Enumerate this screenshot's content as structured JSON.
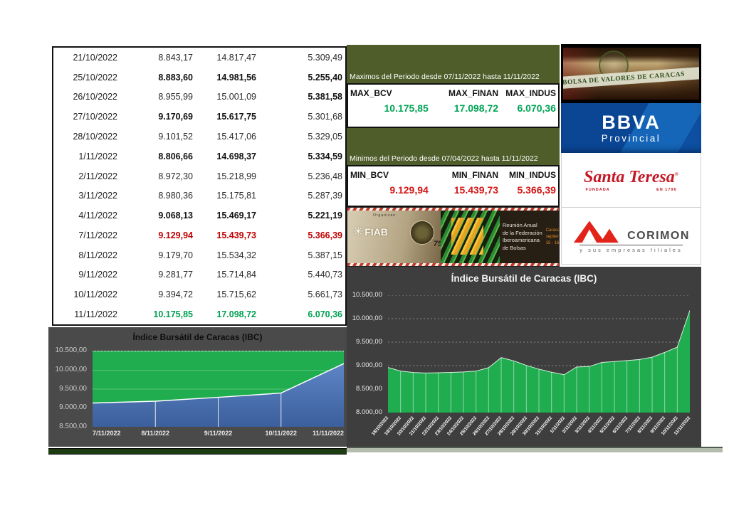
{
  "table": {
    "rows": [
      {
        "date": "21/10/2022",
        "values": [
          "8.843,17",
          "14.817,47",
          "5.309,49"
        ],
        "styles": [
          "n",
          "n",
          "n"
        ]
      },
      {
        "date": "25/10/2022",
        "values": [
          "8.883,60",
          "14.981,56",
          "5.255,40"
        ],
        "styles": [
          "b",
          "b",
          "b"
        ]
      },
      {
        "date": "26/10/2022",
        "values": [
          "8.955,99",
          "15.001,09",
          "5.381,58"
        ],
        "styles": [
          "n",
          "n",
          "b"
        ]
      },
      {
        "date": "27/10/2022",
        "values": [
          "9.170,69",
          "15.617,75",
          "5.301,68"
        ],
        "styles": [
          "b",
          "b",
          "n"
        ]
      },
      {
        "date": "28/10/2022",
        "values": [
          "9.101,52",
          "15.417,06",
          "5.329,05"
        ],
        "styles": [
          "n",
          "n",
          "n"
        ]
      },
      {
        "date": "1/11/2022",
        "values": [
          "8.806,66",
          "14.698,37",
          "5.334,59"
        ],
        "styles": [
          "b",
          "b",
          "b"
        ]
      },
      {
        "date": "2/11/2022",
        "values": [
          "8.972,30",
          "15.218,99",
          "5.236,48"
        ],
        "styles": [
          "n",
          "n",
          "n"
        ]
      },
      {
        "date": "3/11/2022",
        "values": [
          "8.980,36",
          "15.175,81",
          "5.287,39"
        ],
        "styles": [
          "n",
          "n",
          "n"
        ]
      },
      {
        "date": "4/11/2022",
        "values": [
          "9.068,13",
          "15.469,17",
          "5.221,19"
        ],
        "styles": [
          "b",
          "b",
          "b"
        ]
      },
      {
        "date": "7/11/2022",
        "values": [
          "9.129,94",
          "15.439,73",
          "5.366,39"
        ],
        "styles": [
          "r",
          "r",
          "r"
        ]
      },
      {
        "date": "8/11/2022",
        "values": [
          "9.179,70",
          "15.534,32",
          "5.387,15"
        ],
        "styles": [
          "n",
          "n",
          "n"
        ]
      },
      {
        "date": "9/11/2022",
        "values": [
          "9.281,77",
          "15.714,84",
          "5.440,73"
        ],
        "styles": [
          "n",
          "n",
          "n"
        ]
      },
      {
        "date": "10/11/2022",
        "values": [
          "9.394,72",
          "15.715,62",
          "5.661,73"
        ],
        "styles": [
          "n",
          "n",
          "n"
        ]
      },
      {
        "date": "11/11/2022",
        "values": [
          "10.175,85",
          "17.098,72",
          "6.070,36"
        ],
        "styles": [
          "g",
          "g",
          "g"
        ]
      }
    ]
  },
  "stats": {
    "band_color": "#4f5d2b",
    "maximos": {
      "header": "Maximos del Periodo desde 07/11/2022 hasta 11/11/2022",
      "columns": [
        "MAX_BCV",
        "MAX_FINAN",
        "MAX_INDUS"
      ],
      "values": [
        "10.175,85",
        "17.098,72",
        "6.070,36"
      ],
      "value_color": "#00a455"
    },
    "minimos": {
      "header": "Minimos del Periodo desde 07/04/2022 hasta 11/11/2022",
      "columns": [
        "MIN_BCV",
        "MIN_FINAN",
        "MIN_INDUS"
      ],
      "values": [
        "9.129,94",
        "15.439,73",
        "5.366,39"
      ],
      "value_color": "#d41616"
    }
  },
  "banner": {
    "organizer_label": "Organizan",
    "fiab_label": "FIAB",
    "anniversary": "75",
    "title_lines": [
      "Reunión Anual",
      "de la Federación",
      "Iberoamericana",
      "de Bolsas"
    ],
    "event_lines": [
      "Caracas",
      "septiembre",
      "15 - 16 2022"
    ]
  },
  "logos": {
    "bvc": {
      "name": "BOLSA DE VALORES DE CARACAS"
    },
    "bbva": {
      "line1": "BBVA",
      "line2": "Provincial",
      "bg": "#0b509f"
    },
    "santa_teresa": {
      "name": "Santa Teresa",
      "reg": "®",
      "sub_left": "FUNDADA",
      "sub_right": "EN 1796",
      "color": "#c41724"
    },
    "corimon": {
      "name": "CORIMON",
      "subtitle": "y sus empresas filiales",
      "accent": "#e2231a"
    }
  },
  "colors": {
    "table_red": "#c00000",
    "table_green": "#00a052",
    "chart_bg_left": "#4a4a4a",
    "chart_bg_right": "#3e3e3e",
    "area_green": "#1fad4f",
    "area_blue_top": "#5d85c6",
    "area_blue_bottom": "#3c5f9c"
  },
  "chart_data": [
    {
      "type": "area",
      "title": "Índice Bursátil de Caracas (IBC)",
      "x": [
        "7/11/2022",
        "8/11/2022",
        "9/11/2022",
        "10/11/2022",
        "11/11/2022"
      ],
      "series": [
        {
          "name": "IBC",
          "values": [
            9129.94,
            9179.7,
            9281.77,
            9394.72,
            10175.85
          ]
        }
      ],
      "ylim": [
        8500,
        10500
      ],
      "ytick_step": 500,
      "ytick_labels": [
        "10.500,00",
        "10.000,00",
        "9.500,00",
        "9.000,00",
        "8.500,00"
      ],
      "grid": true,
      "legend": false
    },
    {
      "type": "area",
      "title": "Índice Bursátil de Caracas (IBC)",
      "x": [
        "18/10/2022",
        "19/10/2022",
        "20/10/2022",
        "21/10/2022",
        "22/10/2022",
        "23/10/2022",
        "24/10/2022",
        "25/10/2022",
        "26/10/2022",
        "27/10/2022",
        "28/10/2022",
        "29/10/2022",
        "30/10/2022",
        "31/10/2022",
        "1/11/2022",
        "2/11/2022",
        "3/11/2022",
        "4/11/2022",
        "5/11/2022",
        "6/11/2022",
        "7/11/2022",
        "8/11/2022",
        "9/11/2022",
        "10/11/2022",
        "11/11/2022"
      ],
      "series": [
        {
          "name": "IBC",
          "values": [
            8960,
            8885,
            8855,
            8843.17,
            8849,
            8856,
            8865,
            8883.6,
            8955.99,
            9170.69,
            9101.52,
            9005,
            8925,
            8860,
            8806.66,
            8972.3,
            8980.36,
            9068.13,
            9088,
            9108,
            9129.94,
            9179.7,
            9281.77,
            9394.72,
            10175.85
          ]
        }
      ],
      "ylim": [
        8000,
        10500
      ],
      "ytick_step": 500,
      "ytick_labels": [
        "10.500,00",
        "10.000,00",
        "9.500,00",
        "9.000,00",
        "8.500,00",
        "8.000,00"
      ],
      "grid": true,
      "legend": false
    }
  ]
}
